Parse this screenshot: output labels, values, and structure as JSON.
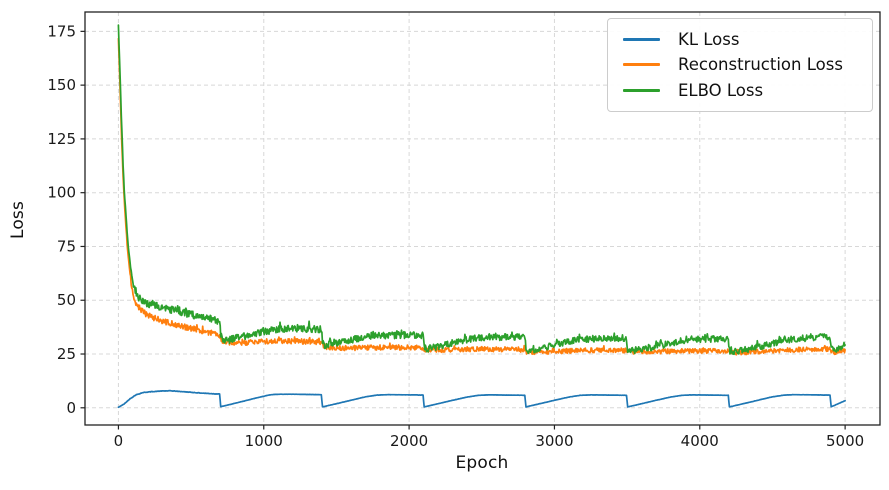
{
  "chart_data": {
    "type": "line",
    "title": "",
    "xlabel": "Epoch",
    "ylabel": "Loss",
    "xlim": [
      -230,
      5240
    ],
    "ylim": [
      -8,
      184
    ],
    "xticks": [
      0,
      1000,
      2000,
      3000,
      4000,
      5000
    ],
    "yticks": [
      0,
      25,
      50,
      75,
      100,
      125,
      150,
      175
    ],
    "grid": true,
    "grid_style": "dashed",
    "legend_position": "upper right",
    "description": "VAE training curves over 5000 epochs; KL loss follows a cyclical annealing sawtooth with period ~700 epochs; reconstruction and ELBO losses decay steeply from ~178 then plateau near 26-33 with noise; ELBO dips to meet reconstruction loss at each KL reset.",
    "series": [
      {
        "name": "KL Loss",
        "color": "#1f77b4",
        "keypoints": [
          [
            0,
            0.2
          ],
          [
            40,
            1.8
          ],
          [
            80,
            4.2
          ],
          [
            120,
            6.0
          ],
          [
            170,
            7.1
          ],
          [
            230,
            7.5
          ],
          [
            300,
            7.8
          ],
          [
            360,
            7.9
          ],
          [
            420,
            7.6
          ],
          [
            500,
            7.2
          ],
          [
            580,
            6.8
          ],
          [
            660,
            6.5
          ],
          [
            697,
            6.4
          ],
          [
            703,
            0.5
          ],
          [
            760,
            1.4
          ],
          [
            850,
            2.9
          ],
          [
            950,
            4.6
          ],
          [
            1040,
            6.0
          ],
          [
            1100,
            6.3
          ],
          [
            1200,
            6.3
          ],
          [
            1300,
            6.2
          ],
          [
            1397,
            6.1
          ],
          [
            1403,
            0.4
          ],
          [
            1500,
            1.9
          ],
          [
            1600,
            3.5
          ],
          [
            1700,
            5.1
          ],
          [
            1780,
            5.9
          ],
          [
            1850,
            6.1
          ],
          [
            2000,
            6.0
          ],
          [
            2097,
            5.9
          ],
          [
            2103,
            0.4
          ],
          [
            2200,
            1.9
          ],
          [
            2300,
            3.5
          ],
          [
            2400,
            5.0
          ],
          [
            2480,
            5.8
          ],
          [
            2550,
            6.0
          ],
          [
            2700,
            5.9
          ],
          [
            2797,
            5.8
          ],
          [
            2803,
            0.4
          ],
          [
            2900,
            1.9
          ],
          [
            3000,
            3.5
          ],
          [
            3100,
            5.0
          ],
          [
            3180,
            5.8
          ],
          [
            3250,
            6.0
          ],
          [
            3400,
            5.9
          ],
          [
            3497,
            5.8
          ],
          [
            3503,
            0.4
          ],
          [
            3600,
            1.9
          ],
          [
            3700,
            3.5
          ],
          [
            3800,
            5.0
          ],
          [
            3880,
            5.8
          ],
          [
            3950,
            6.0
          ],
          [
            4100,
            5.9
          ],
          [
            4197,
            5.8
          ],
          [
            4203,
            0.4
          ],
          [
            4300,
            1.9
          ],
          [
            4400,
            3.5
          ],
          [
            4500,
            5.1
          ],
          [
            4580,
            5.9
          ],
          [
            4650,
            6.1
          ],
          [
            4800,
            6.0
          ],
          [
            4897,
            5.9
          ],
          [
            4903,
            0.4
          ],
          [
            5000,
            3.3
          ]
        ],
        "noise_amp": [
          [
            0,
            0.03
          ],
          [
            120,
            0.1
          ],
          [
            680,
            0.12
          ],
          [
            700,
            0.03
          ],
          [
            1000,
            0.04
          ],
          [
            5000,
            0.04
          ]
        ],
        "spike": {
          "prob": 0,
          "mag": 0
        }
      },
      {
        "name": "Reconstruction Loss",
        "color": "#ff7f0e",
        "keypoints": [
          [
            0,
            172
          ],
          [
            8,
            155
          ],
          [
            16,
            138
          ],
          [
            25,
            119
          ],
          [
            35,
            103
          ],
          [
            45,
            91
          ],
          [
            58,
            78
          ],
          [
            72,
            67
          ],
          [
            88,
            58
          ],
          [
            100,
            53
          ],
          [
            115,
            49.5
          ],
          [
            135,
            47
          ],
          [
            160,
            45
          ],
          [
            200,
            43
          ],
          [
            250,
            41.5
          ],
          [
            320,
            40
          ],
          [
            400,
            38.5
          ],
          [
            480,
            37.3
          ],
          [
            560,
            36
          ],
          [
            640,
            34.7
          ],
          [
            697,
            33.8
          ],
          [
            710,
            31.5
          ],
          [
            740,
            30.2
          ],
          [
            800,
            30
          ],
          [
            900,
            30.4
          ],
          [
            1000,
            30.8
          ],
          [
            1100,
            31
          ],
          [
            1250,
            30.9
          ],
          [
            1397,
            30.6
          ],
          [
            1410,
            29
          ],
          [
            1430,
            28.2
          ],
          [
            1550,
            27.8
          ],
          [
            1700,
            27.9
          ],
          [
            1850,
            28.1
          ],
          [
            2000,
            28
          ],
          [
            2097,
            27.9
          ],
          [
            2110,
            27
          ],
          [
            2200,
            26.9
          ],
          [
            2350,
            27.1
          ],
          [
            2500,
            27.3
          ],
          [
            2650,
            27.2
          ],
          [
            2797,
            27
          ],
          [
            2810,
            26
          ],
          [
            2900,
            25.9
          ],
          [
            3050,
            26.3
          ],
          [
            3200,
            26.6
          ],
          [
            3350,
            26.8
          ],
          [
            3497,
            26.7
          ],
          [
            3510,
            25.9
          ],
          [
            3650,
            26
          ],
          [
            3800,
            26.3
          ],
          [
            3950,
            26.5
          ],
          [
            4100,
            26.4
          ],
          [
            4197,
            26.3
          ],
          [
            4210,
            25.6
          ],
          [
            4350,
            25.9
          ],
          [
            4500,
            26.4
          ],
          [
            4650,
            26.9
          ],
          [
            4800,
            27.2
          ],
          [
            4897,
            27.3
          ],
          [
            4910,
            25.8
          ],
          [
            4950,
            26
          ],
          [
            5000,
            26.6
          ]
        ],
        "noise_amp": [
          [
            0,
            0.4
          ],
          [
            60,
            0.8
          ],
          [
            120,
            1.5
          ],
          [
            300,
            1.4
          ],
          [
            700,
            1.3
          ],
          [
            1200,
            1.2
          ],
          [
            5000,
            1.1
          ]
        ],
        "spike": {
          "prob": 0.06,
          "mag": 1.4
        }
      },
      {
        "name": "ELBO Loss",
        "color": "#2ca02c",
        "keypoints": [
          [
            0,
            178
          ],
          [
            8,
            161
          ],
          [
            16,
            144
          ],
          [
            25,
            125
          ],
          [
            35,
            108
          ],
          [
            45,
            96
          ],
          [
            58,
            83
          ],
          [
            72,
            72
          ],
          [
            88,
            63
          ],
          [
            100,
            58
          ],
          [
            115,
            54.5
          ],
          [
            135,
            52
          ],
          [
            160,
            50
          ],
          [
            200,
            48.5
          ],
          [
            250,
            47.3
          ],
          [
            320,
            46.2
          ],
          [
            400,
            45
          ],
          [
            480,
            43.8
          ],
          [
            560,
            42.4
          ],
          [
            640,
            41
          ],
          [
            697,
            40
          ],
          [
            703,
            34
          ],
          [
            720,
            31.8
          ],
          [
            760,
            31.5
          ],
          [
            820,
            32.5
          ],
          [
            900,
            33.8
          ],
          [
            1000,
            35.5
          ],
          [
            1100,
            36.5
          ],
          [
            1250,
            36.8
          ],
          [
            1397,
            36.5
          ],
          [
            1403,
            31
          ],
          [
            1420,
            29
          ],
          [
            1500,
            30.2
          ],
          [
            1600,
            31.6
          ],
          [
            1700,
            32.8
          ],
          [
            1800,
            33.5
          ],
          [
            1950,
            33.8
          ],
          [
            2097,
            33.6
          ],
          [
            2103,
            28.5
          ],
          [
            2120,
            27.4
          ],
          [
            2200,
            28.5
          ],
          [
            2300,
            30.2
          ],
          [
            2400,
            31.8
          ],
          [
            2500,
            32.8
          ],
          [
            2650,
            32.9
          ],
          [
            2797,
            32.7
          ],
          [
            2803,
            27.5
          ],
          [
            2820,
            26.4
          ],
          [
            2900,
            27.8
          ],
          [
            3000,
            29.3
          ],
          [
            3100,
            30.8
          ],
          [
            3200,
            31.9
          ],
          [
            3350,
            32.4
          ],
          [
            3497,
            32.3
          ],
          [
            3503,
            27
          ],
          [
            3520,
            26.2
          ],
          [
            3650,
            27.9
          ],
          [
            3750,
            29.3
          ],
          [
            3850,
            30.9
          ],
          [
            3950,
            31.9
          ],
          [
            4100,
            32.1
          ],
          [
            4197,
            32
          ],
          [
            4203,
            26.6
          ],
          [
            4220,
            25.9
          ],
          [
            4350,
            27.4
          ],
          [
            4450,
            28.9
          ],
          [
            4550,
            30.9
          ],
          [
            4650,
            31.9
          ],
          [
            4800,
            32.8
          ],
          [
            4897,
            33
          ],
          [
            4903,
            27.5
          ],
          [
            4920,
            26.5
          ],
          [
            4960,
            27.3
          ],
          [
            5000,
            29.8
          ]
        ],
        "noise_amp": [
          [
            0,
            0.4
          ],
          [
            60,
            1.0
          ],
          [
            120,
            1.9
          ],
          [
            300,
            1.8
          ],
          [
            700,
            1.7
          ],
          [
            1200,
            1.6
          ],
          [
            5000,
            1.5
          ]
        ],
        "spike": {
          "prob": 0.07,
          "mag": 2.4
        }
      }
    ]
  },
  "layout_colors": {
    "background": "#ffffff",
    "grid": "#d8d8d8",
    "spine": "#222222",
    "tick": "#222222",
    "tick_label": "#1a1a1a",
    "legend_border": "#cccccc"
  }
}
